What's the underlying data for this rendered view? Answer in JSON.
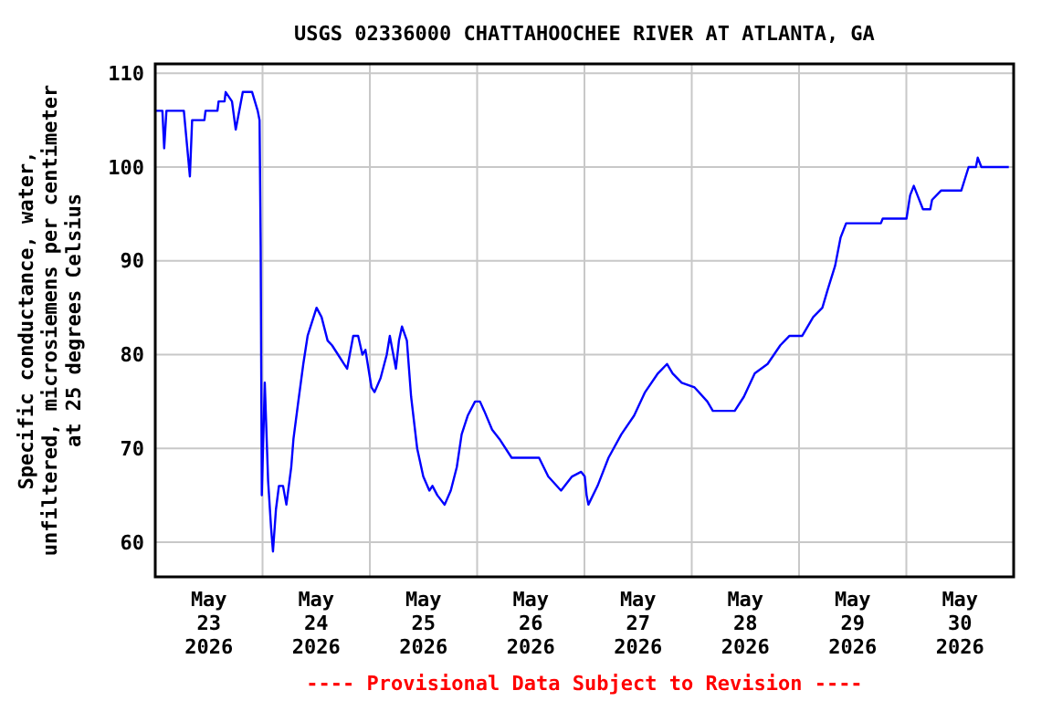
{
  "chart_data": {
    "type": "line",
    "title": "USGS 02336000 CHATTAHOOCHEE RIVER AT ATLANTA, GA",
    "ylabel": "Specific conductance, water,\nunfiltered, microsiemens per centimeter\nat 25 degrees Celsius",
    "annotations": [
      "---- Provisional Data Subject to Revision ----"
    ],
    "xlim": [
      "2026-05-23T00:00",
      "2026-05-31T00:00"
    ],
    "ylim": [
      56.3,
      111
    ],
    "yticks": [
      60,
      70,
      80,
      90,
      100,
      110
    ],
    "xticks": [
      {
        "value": "2026-05-23T12:00",
        "label": "May\n23\n2026"
      },
      {
        "value": "2026-05-24T00:00",
        "label": null
      },
      {
        "value": "2026-05-24T12:00",
        "label": "May\n24\n2026"
      },
      {
        "value": "2026-05-25T00:00",
        "label": null
      },
      {
        "value": "2026-05-25T12:00",
        "label": "May\n25\n2026"
      },
      {
        "value": "2026-05-26T00:00",
        "label": null
      },
      {
        "value": "2026-05-26T12:00",
        "label": "May\n26\n2026"
      },
      {
        "value": "2026-05-27T00:00",
        "label": null
      },
      {
        "value": "2026-05-27T12:00",
        "label": "May\n27\n2026"
      },
      {
        "value": "2026-05-28T00:00",
        "label": null
      },
      {
        "value": "2026-05-28T12:00",
        "label": "May\n28\n2026"
      },
      {
        "value": "2026-05-29T00:00",
        "label": null
      },
      {
        "value": "2026-05-29T12:00",
        "label": "May\n29\n2026"
      },
      {
        "value": "2026-05-30T00:00",
        "label": null
      },
      {
        "value": "2026-05-30T12:00",
        "label": "May\n30\n2026"
      }
    ],
    "grid": true,
    "line_style": "solid",
    "marker": "none",
    "x": [
      "2026-05-23T00:00",
      "2026-05-23T01:36",
      "2026-05-23T02:00",
      "2026-05-23T02:30",
      "2026-05-23T06:24",
      "2026-05-23T07:45",
      "2026-05-23T08:15",
      "2026-05-23T11:00",
      "2026-05-23T11:15",
      "2026-05-23T13:55",
      "2026-05-23T14:10",
      "2026-05-23T15:30",
      "2026-05-23T15:45",
      "2026-05-23T17:10",
      "2026-05-23T18:00",
      "2026-05-23T19:35",
      "2026-05-23T21:40",
      "2026-05-23T22:55",
      "2026-05-23T23:20",
      "2026-05-23T23:35",
      "2026-05-23T23:50",
      "2026-05-24T00:30",
      "2026-05-24T01:15",
      "2026-05-24T01:55",
      "2026-05-24T02:20",
      "2026-05-24T03:00",
      "2026-05-24T03:40",
      "2026-05-24T04:35",
      "2026-05-24T05:20",
      "2026-05-24T06:25",
      "2026-05-24T06:55",
      "2026-05-24T08:00",
      "2026-05-24T09:07",
      "2026-05-24T10:05",
      "2026-05-24T11:25",
      "2026-05-24T12:05",
      "2026-05-24T13:12",
      "2026-05-24T14:33",
      "2026-05-24T15:32",
      "2026-05-24T16:53",
      "2026-05-24T18:14",
      "2026-05-24T18:55",
      "2026-05-24T20:17",
      "2026-05-24T21:23",
      "2026-05-24T22:20",
      "2026-05-24T23:01",
      "2026-05-25T00:22",
      "2026-05-25T01:03",
      "2026-05-25T02:24",
      "2026-05-25T03:47",
      "2026-05-25T04:28",
      "2026-05-25T05:50",
      "2026-05-25T06:31",
      "2026-05-25T07:11",
      "2026-05-25T08:17",
      "2026-05-25T09:14",
      "2026-05-25T10:35",
      "2026-05-25T11:57",
      "2026-05-25T13:19",
      "2026-05-25T14:00",
      "2026-05-25T15:06",
      "2026-05-25T16:44",
      "2026-05-25T18:06",
      "2026-05-25T19:27",
      "2026-05-25T20:32",
      "2026-05-25T21:54",
      "2026-05-25T23:32",
      "2026-05-26T00:38",
      "2026-05-26T01:35",
      "2026-05-26T03:21",
      "2026-05-26T04:59",
      "2026-05-26T07:43",
      "2026-05-26T13:51",
      "2026-05-26T15:54",
      "2026-05-26T18:46",
      "2026-05-26T21:13",
      "2026-05-26T23:16",
      "2026-05-27T00:04",
      "2026-05-27T00:29",
      "2026-05-27T00:53",
      "2026-05-27T02:56",
      "2026-05-27T05:23",
      "2026-05-27T08:15",
      "2026-05-27T11:07",
      "2026-05-27T13:34",
      "2026-05-27T16:26",
      "2026-05-27T18:29",
      "2026-05-27T19:43",
      "2026-05-27T21:46",
      "2026-05-28T00:38",
      "2026-05-28T03:29",
      "2026-05-28T04:43",
      "2026-05-28T09:37",
      "2026-05-28T11:39",
      "2026-05-28T14:06",
      "2026-05-28T16:58",
      "2026-05-28T19:49",
      "2026-05-28T21:52",
      "2026-05-29T00:43",
      "2026-05-29T03:10",
      "2026-05-29T05:13",
      "2026-05-29T06:27",
      "2026-05-29T08:05",
      "2026-05-29T09:18",
      "2026-05-29T10:32",
      "2026-05-29T18:18",
      "2026-05-29T18:43",
      "2026-05-30T00:02",
      "2026-05-30T00:51",
      "2026-05-30T01:40",
      "2026-05-30T02:29",
      "2026-05-30T03:43",
      "2026-05-30T05:21",
      "2026-05-30T05:45",
      "2026-05-30T07:48",
      "2026-05-30T12:18",
      "2026-05-30T13:56",
      "2026-05-30T15:34",
      "2026-05-30T15:58",
      "2026-05-30T16:47",
      "2026-05-30T22:55"
    ],
    "series": [
      {
        "color": "#0000ff",
        "values": [
          106,
          106,
          102,
          106,
          106,
          99,
          105,
          105,
          106,
          106,
          107,
          107,
          108,
          107,
          104,
          108,
          108,
          106,
          105,
          91.5,
          65,
          77,
          66.5,
          61.5,
          59,
          63.5,
          66,
          66,
          64,
          68,
          71,
          75,
          79,
          82,
          84,
          85,
          84,
          81.5,
          81,
          80,
          79,
          78.5,
          82,
          82,
          80,
          80.5,
          76.5,
          76,
          77.5,
          80,
          82,
          78.5,
          81.5,
          83,
          81.5,
          75.5,
          70,
          67,
          65.5,
          66,
          65,
          64,
          65.5,
          68,
          71.5,
          73.5,
          75,
          75,
          74,
          72,
          71,
          69,
          69,
          67,
          65.5,
          67,
          67.5,
          67,
          65,
          64,
          66,
          69,
          71.5,
          73.5,
          76,
          78,
          79,
          78,
          77,
          76.5,
          75,
          74,
          74,
          75.5,
          78,
          79,
          81,
          82,
          82,
          84,
          85,
          87,
          89.5,
          92.5,
          94,
          94,
          94.5,
          94.5,
          97,
          98,
          97,
          95.5,
          95.5,
          96.5,
          97.5,
          97.5,
          100,
          100,
          101,
          100,
          100
        ]
      }
    ]
  }
}
